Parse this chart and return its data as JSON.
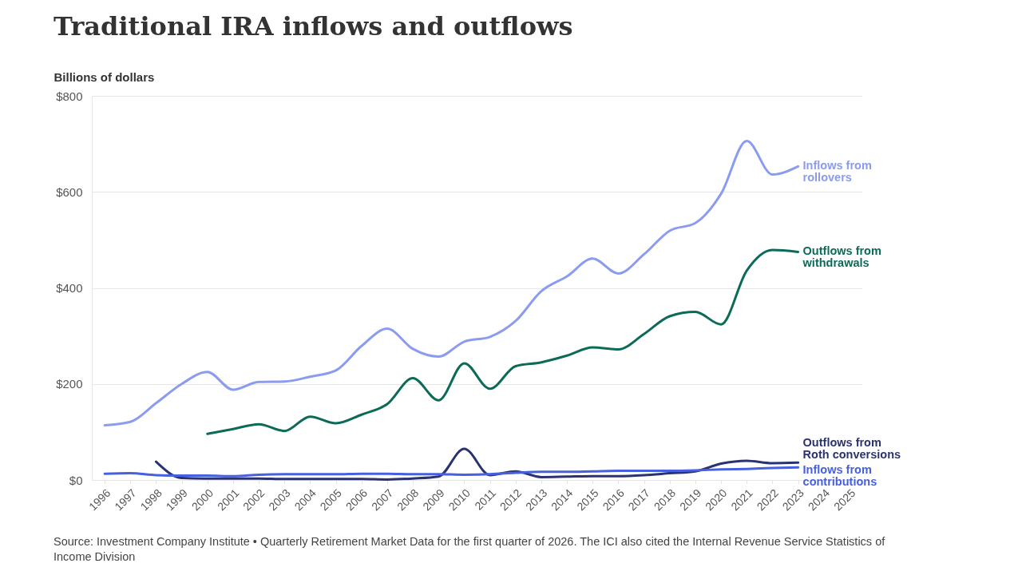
{
  "chart_data": {
    "type": "line",
    "title": "Traditional IRA inflows and outflows",
    "ylabel": "Billions of dollars",
    "x": [
      1996,
      1997,
      1998,
      1999,
      2000,
      2001,
      2002,
      2003,
      2004,
      2005,
      2006,
      2007,
      2008,
      2009,
      2010,
      2011,
      2012,
      2013,
      2014,
      2015,
      2016,
      2017,
      2018,
      2019,
      2020,
      2021,
      2022,
      2023
    ],
    "series": [
      {
        "name": "Inflows from rollovers",
        "color": "#8b9cf0",
        "values": [
          114,
          121,
          160,
          200,
          225,
          188,
          204,
          205,
          215,
          228,
          279,
          315,
          273,
          257,
          288,
          298,
          331,
          393,
          424,
          461,
          430,
          470,
          519,
          535,
          596,
          706,
          636,
          653
        ]
      },
      {
        "name": "Outflows from withdrawals",
        "color": "#0c6b58",
        "values": [
          null,
          null,
          null,
          null,
          96,
          106,
          116,
          102,
          132,
          118,
          136,
          158,
          212,
          166,
          243,
          190,
          237,
          245,
          259,
          276,
          272,
          304,
          341,
          350,
          324,
          436,
          479,
          475
        ]
      },
      {
        "name": "Outflows from Roth conversions",
        "color": "#2b3270",
        "values": [
          null,
          null,
          38,
          4,
          3,
          3,
          3,
          2,
          2,
          2,
          2,
          1,
          3,
          7,
          65,
          10,
          18,
          6,
          7,
          8,
          8,
          10,
          14,
          18,
          34,
          40,
          35,
          36
        ]
      },
      {
        "name": "Inflows from contributions",
        "color": "#4760e0",
        "values": [
          13,
          14,
          10,
          9,
          9,
          8,
          11,
          12,
          12,
          12,
          13,
          13,
          12,
          12,
          11,
          12,
          15,
          17,
          17,
          18,
          19,
          19,
          19,
          20,
          22,
          23,
          25,
          26
        ]
      }
    ],
    "xlim": [
      1995.5,
      2025.5
    ],
    "xticks": [
      1996,
      1997,
      1998,
      1999,
      2000,
      2001,
      2002,
      2003,
      2004,
      2005,
      2006,
      2007,
      2008,
      2009,
      2010,
      2011,
      2012,
      2013,
      2014,
      2015,
      2016,
      2017,
      2018,
      2019,
      2020,
      2021,
      2022,
      2023,
      2024,
      2025
    ],
    "ylim": [
      0,
      800
    ],
    "yticks": [
      {
        "value": 0,
        "label": "$0"
      },
      {
        "value": 200,
        "label": "$200"
      },
      {
        "value": 400,
        "label": "$400"
      },
      {
        "value": 600,
        "label": "$600"
      },
      {
        "value": 800,
        "label": "$800"
      }
    ],
    "grid": "y",
    "line_style": "solid",
    "annotations": [
      "Source: Investment Company Institute • Quarterly Retirement Market Data for the first quarter of 2026. The ICI also cited the Internal Revenue Service Statistics of Income Division"
    ]
  }
}
